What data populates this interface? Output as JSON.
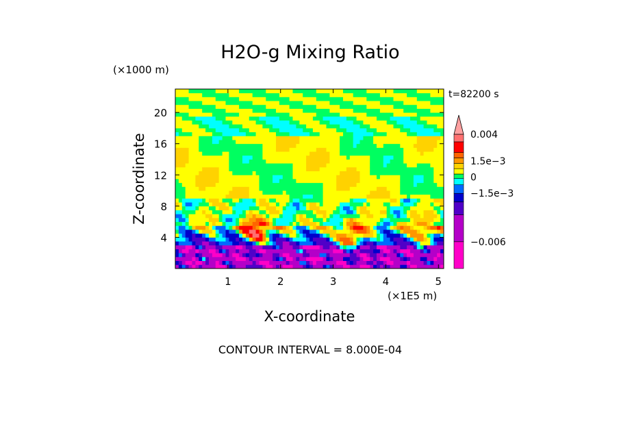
{
  "chart_data": {
    "type": "heatmap",
    "title": "H2O-g Mixing Ratio",
    "xlabel": "X-coordinate",
    "ylabel": "Z-coordinate",
    "x_unit": "(×1E5 m)",
    "y_unit": "(×1000 m)",
    "time_label": "t=82200 s",
    "footer": "CONTOUR INTERVAL = 8.000E-04",
    "xlim": [
      0,
      5.1
    ],
    "ylim": [
      0,
      23
    ],
    "x_ticks": [
      {
        "value": 1,
        "label": "1"
      },
      {
        "value": 2,
        "label": "2"
      },
      {
        "value": 3,
        "label": "3"
      },
      {
        "value": 4,
        "label": "4"
      },
      {
        "value": 5,
        "label": "5"
      }
    ],
    "y_ticks": [
      {
        "value": 4,
        "label": "4"
      },
      {
        "value": 8,
        "label": "8"
      },
      {
        "value": 12,
        "label": "12"
      },
      {
        "value": 16,
        "label": "16"
      },
      {
        "value": 20,
        "label": "20"
      }
    ],
    "colorbar": {
      "min": -0.0085,
      "max": 0.0045,
      "levels": [
        {
          "from": -0.0085,
          "to": -0.006,
          "color": "#ff00c8"
        },
        {
          "from": -0.006,
          "to": -0.0035,
          "color": "#b400c8"
        },
        {
          "from": -0.0035,
          "to": -0.0023,
          "color": "#5000c8"
        },
        {
          "from": -0.0023,
          "to": -0.0015,
          "color": "#0000cc"
        },
        {
          "from": -0.0015,
          "to": -0.0007,
          "color": "#0068ff"
        },
        {
          "from": -0.0007,
          "to": -0.0001,
          "color": "#00ffff"
        },
        {
          "from": -0.0001,
          "to": 0.0003,
          "color": "#00ff60"
        },
        {
          "from": 0.0003,
          "to": 0.0008,
          "color": "#ffff00"
        },
        {
          "from": 0.0008,
          "to": 0.0013,
          "color": "#ffd200"
        },
        {
          "from": 0.0013,
          "to": 0.0018,
          "color": "#ff9600"
        },
        {
          "from": 0.0018,
          "to": 0.0023,
          "color": "#ff6400"
        },
        {
          "from": 0.0023,
          "to": 0.0033,
          "color": "#ff0000"
        },
        {
          "from": 0.0033,
          "to": 0.004,
          "color": "#ff7070"
        }
      ],
      "over_color": "#ffa0a0",
      "labels": [
        {
          "value": 0.004,
          "label": "0.004"
        },
        {
          "value": 0.0015,
          "label": "1.5e-3"
        },
        {
          "value": 0,
          "label": "0"
        },
        {
          "value": -0.0015,
          "label": "-1.5e-3"
        },
        {
          "value": -0.006,
          "label": "-0.006"
        }
      ]
    }
  }
}
